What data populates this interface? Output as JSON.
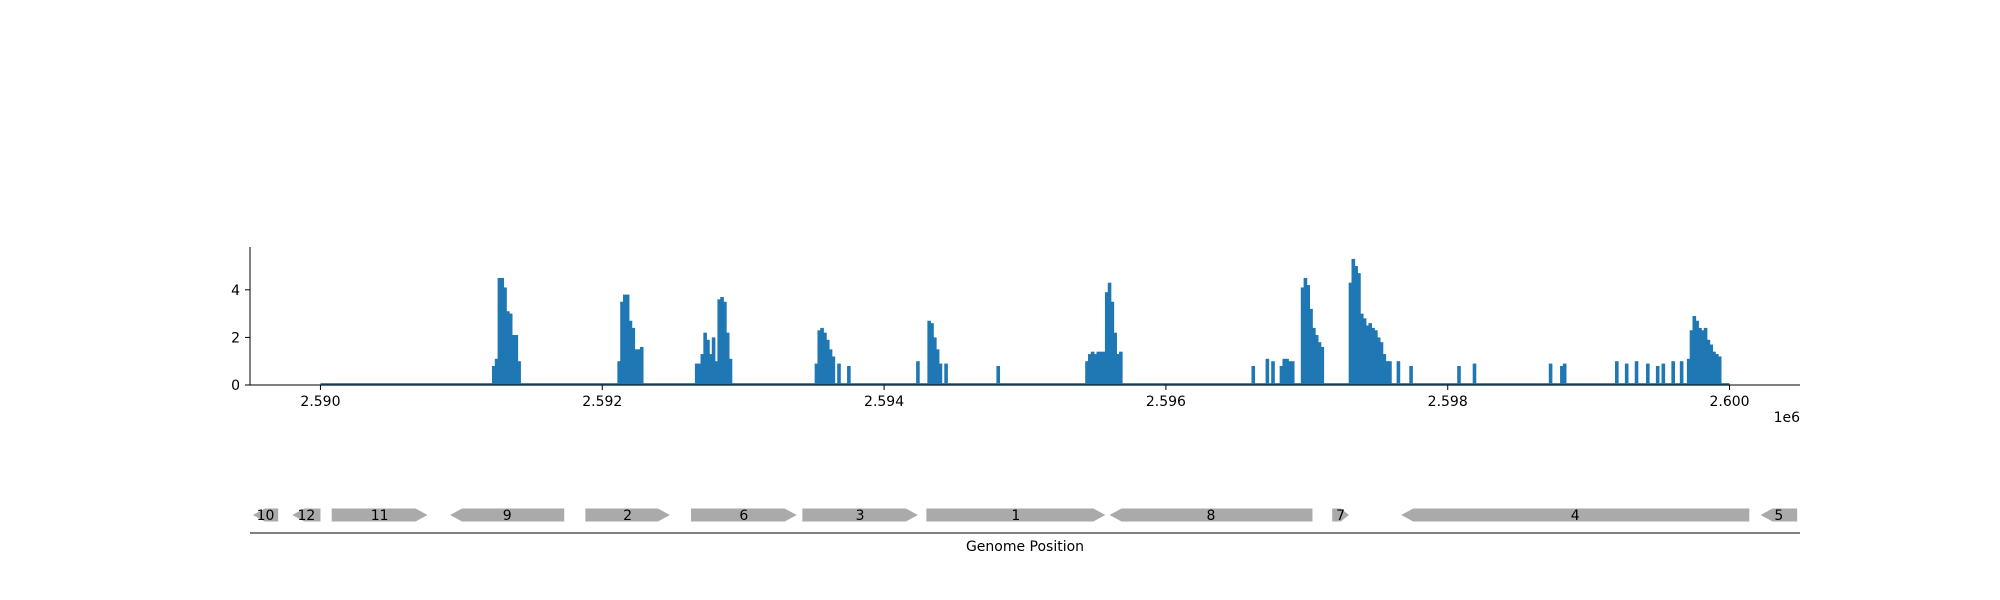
{
  "chart_data": [
    {
      "type": "bar",
      "title": "",
      "xlabel": "",
      "ylabel": "",
      "xlim": [
        2589500,
        2600500
      ],
      "ylim": [
        0,
        5.8
      ],
      "x_offset_label": "1e6",
      "x_ticks": [
        2590000,
        2592000,
        2594000,
        2596000,
        2598000,
        2600000
      ],
      "x_tick_labels": [
        "2.590",
        "2.592",
        "2.594",
        "2.596",
        "2.598",
        "2.600"
      ],
      "y_ticks": [
        0,
        2,
        4
      ],
      "y_tick_labels": [
        "0",
        "2",
        "4"
      ],
      "grid": false,
      "bar_color": "#1f77b4",
      "baseline_range": [
        2590000,
        2600000
      ],
      "peaks": [
        {
          "x": [
            2591230,
            2591250,
            2591270,
            2591290,
            2591310,
            2591330,
            2591350,
            2591370,
            2591390,
            2591410
          ],
          "values": [
            0.8,
            1.1,
            4.5,
            4.5,
            4.1,
            3.1,
            3.0,
            2.1,
            2.1,
            1.0
          ]
        },
        {
          "x": [
            2592120,
            2592140,
            2592160,
            2592180,
            2592200,
            2592220,
            2592240,
            2592260,
            2592280
          ],
          "values": [
            1.0,
            3.5,
            3.8,
            3.8,
            2.7,
            2.4,
            1.5,
            1.5,
            1.6
          ]
        },
        {
          "x": [
            2592670,
            2592690,
            2592710,
            2592730,
            2592750,
            2592770,
            2592790,
            2592810,
            2592830,
            2592850,
            2592870,
            2592890,
            2592910
          ],
          "values": [
            0.9,
            0.9,
            1.3,
            2.2,
            1.9,
            1.3,
            2.0,
            1.0,
            3.6,
            3.7,
            3.5,
            2.2,
            1.1
          ]
        },
        {
          "x": [
            2593520,
            2593540,
            2593560,
            2593580,
            2593600,
            2593620,
            2593640,
            2593680,
            2593750
          ],
          "values": [
            0.9,
            2.3,
            2.4,
            2.2,
            1.9,
            1.5,
            1.2,
            0.9,
            0.8
          ]
        },
        {
          "x": [
            2594240
          ],
          "values": [
            1.0
          ]
        },
        {
          "x": [
            2594320,
            2594340,
            2594360,
            2594380,
            2594400,
            2594440
          ],
          "values": [
            2.7,
            2.6,
            2.0,
            1.5,
            0.9,
            0.9
          ]
        },
        {
          "x": [
            2594810
          ],
          "values": [
            0.8
          ]
        },
        {
          "x": [
            2595440,
            2595460,
            2595480,
            2595500,
            2595520,
            2595540,
            2595560,
            2595580,
            2595600,
            2595620,
            2595640,
            2595660,
            2595680
          ],
          "values": [
            1.0,
            1.3,
            1.4,
            1.3,
            1.4,
            1.4,
            1.4,
            3.9,
            4.3,
            3.5,
            2.2,
            1.3,
            1.4
          ]
        },
        {
          "x": [
            2596620,
            2596720,
            2596760,
            2596820,
            2596840,
            2596860,
            2596880,
            2596900
          ],
          "values": [
            0.8,
            1.1,
            1.0,
            0.8,
            1.1,
            1.1,
            1.0,
            1.0
          ]
        },
        {
          "x": [
            2596970,
            2596990,
            2597010,
            2597030,
            2597050,
            2597070,
            2597090,
            2597110
          ],
          "values": [
            4.1,
            4.5,
            4.2,
            3.2,
            2.4,
            2.1,
            1.8,
            1.6
          ]
        },
        {
          "x": [
            2597310,
            2597330,
            2597350,
            2597370,
            2597390,
            2597410,
            2597430,
            2597450,
            2597470,
            2597490,
            2597510,
            2597530,
            2597550,
            2597570,
            2597590,
            2597650,
            2597740
          ],
          "values": [
            4.3,
            5.3,
            5.0,
            4.7,
            3.0,
            2.8,
            2.5,
            2.6,
            2.4,
            2.3,
            2.0,
            1.8,
            1.3,
            1.0,
            1.0,
            1.0,
            0.8
          ]
        },
        {
          "x": [
            2598080,
            2598190,
            2598730,
            2598810,
            2598830
          ],
          "values": [
            0.8,
            0.9,
            0.9,
            0.8,
            0.9
          ]
        },
        {
          "x": [
            2599200,
            2599270,
            2599340,
            2599420,
            2599490,
            2599530,
            2599600,
            2599660
          ],
          "values": [
            1.0,
            0.9,
            1.0,
            0.9,
            0.8,
            0.9,
            1.0,
            1.0
          ]
        },
        {
          "x": [
            2599710,
            2599730,
            2599750,
            2599770,
            2599790,
            2599810,
            2599830,
            2599850,
            2599870,
            2599890,
            2599910,
            2599930
          ],
          "values": [
            1.1,
            2.3,
            2.9,
            2.7,
            2.4,
            2.3,
            2.4,
            1.9,
            1.7,
            1.4,
            1.3,
            1.2
          ]
        }
      ]
    },
    {
      "type": "gene-track",
      "xlabel": "Genome Position",
      "feature_color": "#aaaaaa",
      "genes": [
        {
          "label": "10",
          "start": 2589520,
          "end": 2589700,
          "strand": "-"
        },
        {
          "label": "12",
          "start": 2589800,
          "end": 2590000,
          "strand": "-"
        },
        {
          "label": "11",
          "start": 2590080,
          "end": 2590760,
          "strand": "+"
        },
        {
          "label": "9",
          "start": 2590920,
          "end": 2591730,
          "strand": "-"
        },
        {
          "label": "2",
          "start": 2591880,
          "end": 2592480,
          "strand": "+"
        },
        {
          "label": "6",
          "start": 2592630,
          "end": 2593380,
          "strand": "+"
        },
        {
          "label": "3",
          "start": 2593420,
          "end": 2594240,
          "strand": "+"
        },
        {
          "label": "1",
          "start": 2594300,
          "end": 2595570,
          "strand": "+"
        },
        {
          "label": "8",
          "start": 2595600,
          "end": 2597040,
          "strand": "-"
        },
        {
          "label": "7",
          "start": 2597180,
          "end": 2597300,
          "strand": "+"
        },
        {
          "label": "4",
          "start": 2597670,
          "end": 2600140,
          "strand": "-"
        },
        {
          "label": "5",
          "start": 2600220,
          "end": 2600480,
          "strand": "-"
        }
      ]
    }
  ]
}
